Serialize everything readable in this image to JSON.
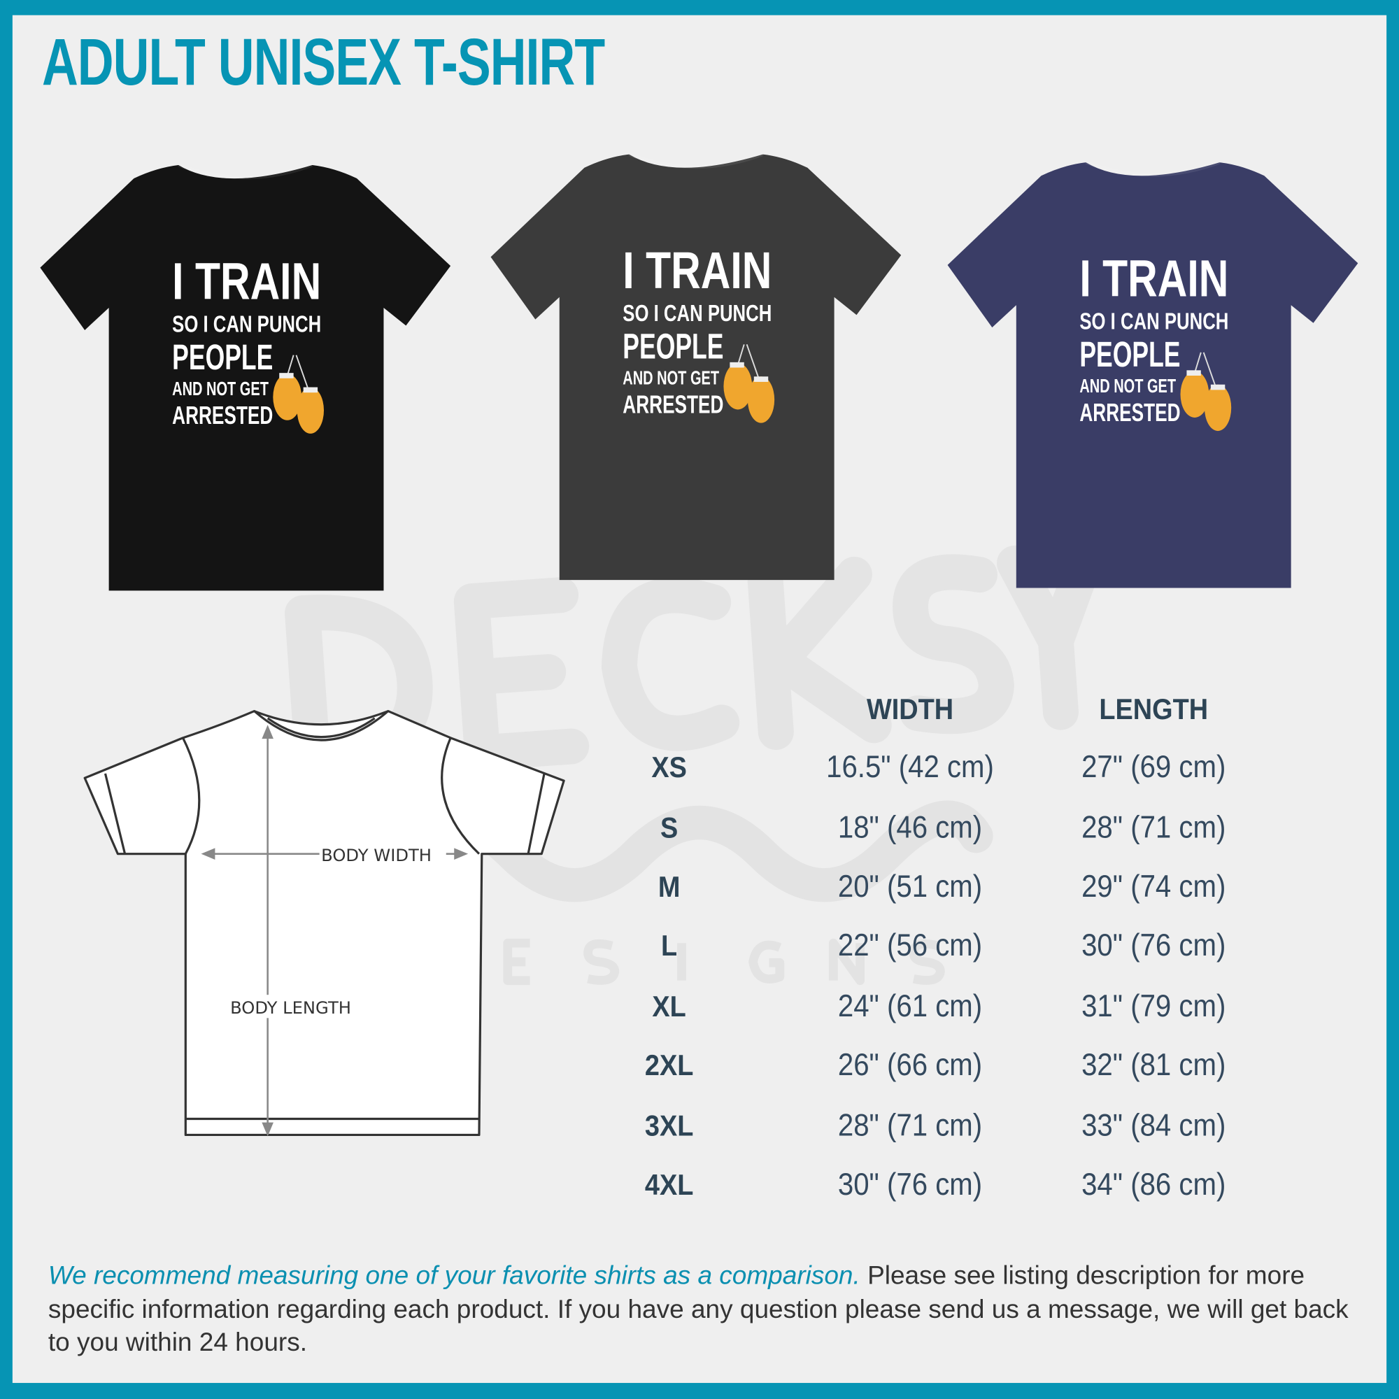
{
  "title": "ADULT UNISEX T-SHIRT",
  "accent_color": "#0694b4",
  "watermark": {
    "brand": "DECKSY",
    "sub": "DESIGNS"
  },
  "design": {
    "lines": [
      "I TRAIN",
      "SO I CAN PUNCH",
      "PEOPLE",
      "AND NOT GET",
      "ARRESTED"
    ],
    "graphic": "boxing-gloves-icon",
    "graphic_color": "#f0a62e"
  },
  "shirts": [
    {
      "color_name": "black",
      "color": "#141414"
    },
    {
      "color_name": "dark-grey-heather",
      "color": "#3b3b3b"
    },
    {
      "color_name": "heather-navy",
      "color": "#3a3d66"
    }
  ],
  "diagram": {
    "width_label": "BODY WIDTH",
    "length_label": "BODY LENGTH"
  },
  "size_chart": {
    "headers": {
      "width": "WIDTH",
      "length": "LENGTH"
    },
    "rows": [
      {
        "size": "XS",
        "width": "16.5\" (42 cm)",
        "length": "27\" (69 cm)"
      },
      {
        "size": "S",
        "width": "18\" (46 cm)",
        "length": "28\" (71 cm)"
      },
      {
        "size": "M",
        "width": "20\" (51 cm)",
        "length": "29\" (74 cm)"
      },
      {
        "size": "L",
        "width": "22\" (56 cm)",
        "length": "30\" (76 cm)"
      },
      {
        "size": "XL",
        "width": "24\" (61 cm)",
        "length": "31\" (79 cm)"
      },
      {
        "size": "2XL",
        "width": "26\" (66 cm)",
        "length": "32\" (81 cm)"
      },
      {
        "size": "3XL",
        "width": "28\" (71 cm)",
        "length": "33\" (84 cm)"
      },
      {
        "size": "4XL",
        "width": "30\" (76 cm)",
        "length": "34\" (86 cm)"
      }
    ]
  },
  "footer": {
    "highlight": "We recommend measuring one of your favorite shirts as a comparison.",
    "text": " Please see listing description for more specific information regarding each product. If you have any question please send us a message, we will get back to you within 24 hours."
  }
}
